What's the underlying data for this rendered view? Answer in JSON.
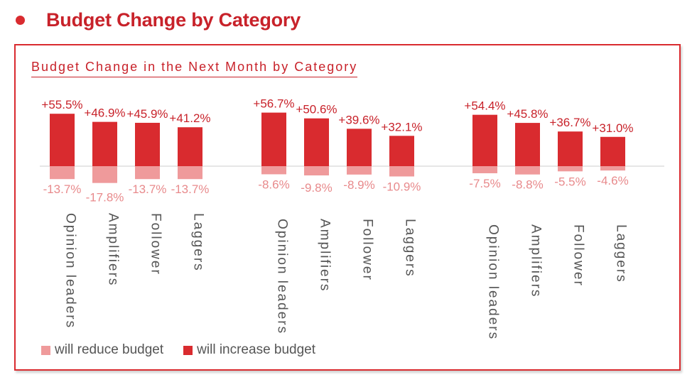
{
  "header": {
    "title": "Budget Change by Category"
  },
  "colors": {
    "increase": "#d92b2f",
    "reduce": "#ef9a9b",
    "increase_label": "#c8222a",
    "reduce_label": "#e88a8c",
    "axis": "#cccccc",
    "category": "#555555"
  },
  "chart_data": {
    "type": "bar",
    "title": "Budget Change in the Next Month by Category",
    "categories": [
      "Opinion leaders",
      "Amplifiers",
      "Follower",
      "Laggers"
    ],
    "groups": [
      {
        "increase": [
          55.5,
          46.9,
          45.9,
          41.2
        ],
        "reduce": [
          -13.7,
          -17.8,
          -13.7,
          -13.7
        ],
        "increase_labels": [
          "+55.5%",
          "+46.9%",
          "+45.9%",
          "+41.2%"
        ],
        "reduce_labels": [
          "-13.7%",
          "-17.8%",
          "-13.7%",
          "-13.7%"
        ]
      },
      {
        "increase": [
          56.7,
          50.6,
          39.6,
          32.1
        ],
        "reduce": [
          -8.6,
          -9.8,
          -8.9,
          -10.9
        ],
        "increase_labels": [
          "+56.7%",
          "+50.6%",
          "+39.6%",
          "+32.1%"
        ],
        "reduce_labels": [
          "-8.6%",
          "-9.8%",
          "-8.9%",
          "-10.9%"
        ]
      },
      {
        "increase": [
          54.4,
          45.8,
          36.7,
          31.0
        ],
        "reduce": [
          -7.5,
          -8.8,
          -5.5,
          -4.6
        ],
        "increase_labels": [
          "+54.4%",
          "+45.8%",
          "+36.7%",
          "+31.0%"
        ],
        "reduce_labels": [
          "-7.5%",
          "-8.8%",
          "-5.5%",
          "-4.6%"
        ]
      }
    ],
    "legend": [
      {
        "label": "will reduce budget",
        "series": "reduce"
      },
      {
        "label": "will increase budget",
        "series": "increase"
      }
    ],
    "legend_position": "bottom-left"
  }
}
